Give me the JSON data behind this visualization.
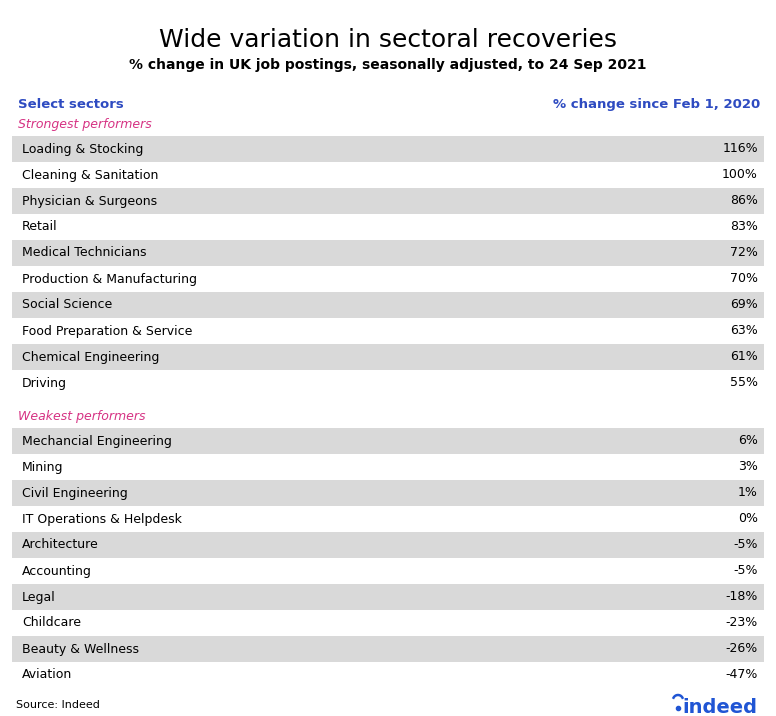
{
  "title": "Wide variation in sectoral recoveries",
  "subtitle": "% change in UK job postings, seasonally adjusted, to 24 Sep 2021",
  "col_header_left": "Select sectors",
  "col_header_right": "% change since Feb 1, 2020",
  "strongest_label": "Strongest performers",
  "weakest_label": "Weakest performers",
  "strongest_rows": [
    [
      "Loading & Stocking",
      "116%"
    ],
    [
      "Cleaning & Sanitation",
      "100%"
    ],
    [
      "Physician & Surgeons",
      "86%"
    ],
    [
      "Retail",
      "83%"
    ],
    [
      "Medical Technicians",
      "72%"
    ],
    [
      "Production & Manufacturing",
      "70%"
    ],
    [
      "Social Science",
      "69%"
    ],
    [
      "Food Preparation & Service",
      "63%"
    ],
    [
      "Chemical Engineering",
      "61%"
    ],
    [
      "Driving",
      "55%"
    ]
  ],
  "weakest_rows": [
    [
      "Mechancial Engineering",
      "6%"
    ],
    [
      "Mining",
      "3%"
    ],
    [
      "Civil Engineering",
      "1%"
    ],
    [
      "IT Operations & Helpdesk",
      "0%"
    ],
    [
      "Architecture",
      "-5%"
    ],
    [
      "Accounting",
      "-5%"
    ],
    [
      "Legal",
      "-18%"
    ],
    [
      "Childcare",
      "-23%"
    ],
    [
      "Beauty & Wellness",
      "-26%"
    ],
    [
      "Aviation",
      "-47%"
    ]
  ],
  "row_shaded_color": "#d9d9d9",
  "row_white_color": "#ffffff",
  "header_blue": "#2e4bc1",
  "strongest_color": "#d63384",
  "weakest_color": "#d63384",
  "source_text": "Source: Indeed",
  "indeed_color": "#2055d4",
  "background_color": "#ffffff",
  "title_fontsize": 18,
  "subtitle_fontsize": 10,
  "header_fontsize": 9.5,
  "row_fontsize": 9,
  "section_label_fontsize": 9,
  "source_fontsize": 8,
  "indeed_fontsize": 14
}
